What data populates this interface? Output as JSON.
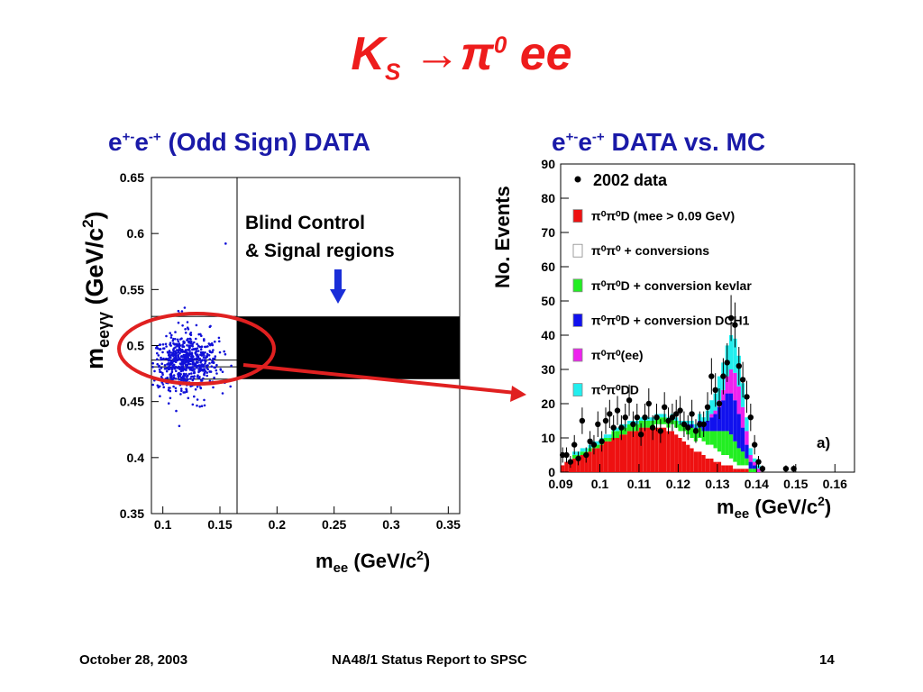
{
  "slide": {
    "title_main": "K",
    "title_sub": "S",
    "title_arrow": "→",
    "title_pi": "π",
    "title_pi_sup": "0",
    "title_ee": " ee",
    "left_title_a": "e",
    "left_title_a_sup": "+-",
    "left_title_b": "e",
    "left_title_b_sup": "-+",
    "left_title_c": " (Odd Sign) DATA",
    "right_title_a": "e",
    "right_title_a_sup": "+-",
    "right_title_b": "e",
    "right_title_b_sup": "-+",
    "right_title_c": " DATA vs. MC"
  },
  "footer": {
    "date": "October 28, 2003",
    "report": "NA48/1 Status Report to SPSC",
    "page": "14"
  },
  "colors": {
    "title": "#ee1c1c",
    "subtitle": "#1a1aa8",
    "points_left": "#1010d8",
    "highlight_ellipse": "#e02020",
    "mc_red": "#ee1111",
    "mc_white": "#ffffff",
    "mc_green": "#22ee22",
    "mc_blue": "#1111ee",
    "mc_magenta": "#ee22ee",
    "mc_cyan": "#22eeee"
  },
  "chart_data": [
    {
      "type": "scatter",
      "xlabel": "m",
      "xlabel_sub": "ee",
      "xlabel_unit": " (GeV/c",
      "xlabel_unit_sup": "2",
      "xlabel_close": ")",
      "ylabel": "m",
      "ylabel_sub": "eeγγ",
      "ylabel_unit": " (GeV/c",
      "ylabel_unit_sup": "2",
      "ylabel_close": ")",
      "xlim": [
        0.09,
        0.36
      ],
      "ylim": [
        0.35,
        0.65
      ],
      "x_ticks": [
        "0.1",
        "0.15",
        "0.2",
        "0.25",
        "0.3",
        "0.35"
      ],
      "x_tick_values": [
        0.1,
        0.15,
        0.2,
        0.25,
        0.3,
        0.35
      ],
      "y_ticks": [
        "0.35",
        "0.4",
        "0.45",
        "0.5",
        "0.55",
        "0.6",
        "0.65"
      ],
      "y_tick_values": [
        0.35,
        0.4,
        0.45,
        0.5,
        0.55,
        0.6,
        0.65
      ],
      "annotation_lines": [
        "Blind Control",
        "& Signal regions"
      ],
      "blind_region": {
        "x": [
          0.165,
          0.36
        ],
        "y": [
          0.47,
          0.526
        ]
      },
      "control_region": {
        "x": [
          0.09,
          0.165
        ],
        "y": [
          0.47,
          0.526
        ]
      },
      "inner_band": {
        "y": [
          0.481,
          0.487
        ]
      },
      "signal_cut_x": 0.165,
      "point_cluster": {
        "x_center": 0.12,
        "x_spread": 0.024,
        "y_center": 0.485,
        "y_spread": 0.012,
        "count": 650
      }
    },
    {
      "type": "histogram",
      "ylabel": "No. Events",
      "xlabel": "m",
      "xlabel_sub": "ee",
      "xlabel_unit": " (GeV/c",
      "xlabel_unit_sup": "2",
      "xlabel_close": ")",
      "xlim": [
        0.09,
        0.165
      ],
      "ylim": [
        0,
        90
      ],
      "x_ticks": [
        "0.09",
        "0.1",
        "0.11",
        "0.12",
        "0.13",
        "0.14",
        "0.15",
        "0.16"
      ],
      "x_tick_values": [
        0.09,
        0.1,
        0.11,
        0.12,
        0.13,
        0.14,
        0.15,
        0.16
      ],
      "y_ticks": [
        "0",
        "10",
        "20",
        "30",
        "40",
        "50",
        "60",
        "70",
        "80",
        "90"
      ],
      "y_tick_values": [
        0,
        10,
        20,
        30,
        40,
        50,
        60,
        70,
        80,
        90
      ],
      "panel_label": "a)",
      "legend": [
        {
          "marker": "dot",
          "text": "2002 data",
          "color": "#000000"
        },
        {
          "marker": "box",
          "text": "π⁰π⁰D (mee > 0.09 GeV)",
          "color": "#ee1111"
        },
        {
          "marker": "box",
          "text": "π⁰π⁰ + conversions",
          "color": "#ffffff"
        },
        {
          "marker": "box",
          "text": "π⁰π⁰D + conversion kevlar",
          "color": "#22ee22"
        },
        {
          "marker": "box",
          "text": "π⁰π⁰D + conversion DCH1",
          "color": "#1111ee"
        },
        {
          "marker": "box",
          "text": "π⁰π⁰(ee)",
          "color": "#ee22ee"
        },
        {
          "marker": "box",
          "text": "π⁰π⁰DD",
          "color": "#22eeee"
        }
      ],
      "bins": [
        0.0905,
        0.0915,
        0.0925,
        0.0935,
        0.0945,
        0.0955,
        0.0965,
        0.0975,
        0.0985,
        0.0995,
        0.1005,
        0.1015,
        0.1025,
        0.1035,
        0.1045,
        0.1055,
        0.1065,
        0.1075,
        0.1085,
        0.1095,
        0.1105,
        0.1115,
        0.1125,
        0.1135,
        0.1145,
        0.1155,
        0.1165,
        0.1175,
        0.1185,
        0.1195,
        0.1205,
        0.1215,
        0.1225,
        0.1235,
        0.1245,
        0.1255,
        0.1265,
        0.1275,
        0.1285,
        0.1295,
        0.1305,
        0.1315,
        0.1325,
        0.1335,
        0.1345,
        0.1355,
        0.1365,
        0.1375,
        0.1385,
        0.1395,
        0.1405,
        0.1415,
        0.1425,
        0.1435,
        0.1445
      ],
      "series": [
        {
          "name": "π⁰π⁰D (mee > 0.09 GeV)",
          "color": "#ee1111",
          "values": [
            2,
            3,
            3,
            4,
            4,
            5,
            5,
            6,
            7,
            7,
            8,
            9,
            9,
            10,
            10,
            11,
            11,
            12,
            12,
            12,
            13,
            13,
            13,
            13,
            13,
            13,
            13,
            12,
            12,
            11,
            10,
            9,
            8,
            7,
            6,
            6,
            5,
            4,
            4,
            3,
            3,
            2,
            2,
            2,
            1,
            1,
            1,
            1,
            0,
            0,
            0,
            0,
            0,
            0,
            0
          ]
        },
        {
          "name": "π⁰π⁰ + conversions",
          "color": "#ffffff",
          "values": [
            0,
            0,
            0,
            0,
            0,
            0,
            0,
            0,
            0,
            0,
            0,
            0,
            0,
            0,
            0,
            0,
            0,
            0,
            0,
            0,
            0,
            0,
            0,
            0,
            1,
            1,
            1,
            1,
            2,
            2,
            2,
            3,
            3,
            3,
            3,
            4,
            4,
            4,
            4,
            4,
            3,
            3,
            3,
            2,
            2,
            1,
            1,
            1,
            0,
            0,
            0,
            0,
            0,
            0,
            0
          ]
        },
        {
          "name": "π⁰π⁰D + conversion kevlar",
          "color": "#22ee22",
          "values": [
            0,
            0,
            0,
            1,
            1,
            1,
            1,
            1,
            1,
            1,
            1,
            1,
            1,
            2,
            2,
            2,
            2,
            2,
            2,
            2,
            2,
            2,
            2,
            2,
            2,
            2,
            2,
            2,
            2,
            2,
            2,
            2,
            2,
            3,
            3,
            3,
            3,
            4,
            4,
            5,
            6,
            7,
            7,
            7,
            6,
            5,
            4,
            2,
            1,
            1,
            0,
            0,
            0,
            0,
            0
          ]
        },
        {
          "name": "π⁰π⁰D + conversion DCH1",
          "color": "#1111ee",
          "values": [
            0,
            0,
            0,
            0,
            0,
            0,
            0,
            0,
            0,
            0,
            0,
            0,
            0,
            0,
            0,
            0,
            0,
            0,
            0,
            0,
            0,
            0,
            0,
            0,
            0,
            0,
            0,
            0,
            0,
            0,
            0,
            0,
            1,
            1,
            1,
            2,
            2,
            3,
            4,
            5,
            7,
            9,
            11,
            12,
            12,
            10,
            7,
            4,
            2,
            1,
            0,
            0,
            0,
            0,
            0
          ]
        },
        {
          "name": "π⁰π⁰(ee)",
          "color": "#ee22ee",
          "values": [
            0,
            0,
            0,
            0,
            0,
            0,
            0,
            0,
            0,
            0,
            0,
            0,
            0,
            0,
            0,
            0,
            0,
            0,
            0,
            0,
            0,
            0,
            0,
            0,
            0,
            0,
            0,
            0,
            0,
            0,
            0,
            0,
            0,
            0,
            0,
            0,
            0,
            0,
            1,
            1,
            2,
            3,
            5,
            7,
            8,
            8,
            6,
            4,
            2,
            1,
            1,
            0,
            0,
            0,
            0
          ]
        },
        {
          "name": "π⁰π⁰DD",
          "color": "#22eeee",
          "values": [
            0,
            0,
            0,
            1,
            1,
            1,
            1,
            1,
            1,
            1,
            1,
            1,
            1,
            1,
            1,
            1,
            1,
            1,
            1,
            1,
            1,
            1,
            1,
            1,
            1,
            1,
            1,
            1,
            1,
            1,
            1,
            1,
            1,
            1,
            1,
            2,
            2,
            3,
            4,
            5,
            7,
            8,
            9,
            10,
            10,
            9,
            7,
            4,
            2,
            1,
            1,
            0,
            0,
            0,
            0
          ]
        }
      ],
      "data_points": [
        {
          "x": 0.0905,
          "y": 5
        },
        {
          "x": 0.0915,
          "y": 5
        },
        {
          "x": 0.0925,
          "y": 3
        },
        {
          "x": 0.0935,
          "y": 8
        },
        {
          "x": 0.0945,
          "y": 4
        },
        {
          "x": 0.0955,
          "y": 15
        },
        {
          "x": 0.0965,
          "y": 5
        },
        {
          "x": 0.0975,
          "y": 9
        },
        {
          "x": 0.0985,
          "y": 8
        },
        {
          "x": 0.0995,
          "y": 14
        },
        {
          "x": 0.1005,
          "y": 9
        },
        {
          "x": 0.1015,
          "y": 15
        },
        {
          "x": 0.1025,
          "y": 17
        },
        {
          "x": 0.1035,
          "y": 13
        },
        {
          "x": 0.1045,
          "y": 18
        },
        {
          "x": 0.1055,
          "y": 13
        },
        {
          "x": 0.1065,
          "y": 16
        },
        {
          "x": 0.1075,
          "y": 21
        },
        {
          "x": 0.1085,
          "y": 14
        },
        {
          "x": 0.1095,
          "y": 16
        },
        {
          "x": 0.1105,
          "y": 11
        },
        {
          "x": 0.1115,
          "y": 16
        },
        {
          "x": 0.1125,
          "y": 20
        },
        {
          "x": 0.1135,
          "y": 13
        },
        {
          "x": 0.1145,
          "y": 16
        },
        {
          "x": 0.1155,
          "y": 12
        },
        {
          "x": 0.1165,
          "y": 19
        },
        {
          "x": 0.1175,
          "y": 15
        },
        {
          "x": 0.1185,
          "y": 16
        },
        {
          "x": 0.1195,
          "y": 17
        },
        {
          "x": 0.1205,
          "y": 18
        },
        {
          "x": 0.1215,
          "y": 14
        },
        {
          "x": 0.1225,
          "y": 13
        },
        {
          "x": 0.1235,
          "y": 17
        },
        {
          "x": 0.1245,
          "y": 12
        },
        {
          "x": 0.1255,
          "y": 14
        },
        {
          "x": 0.1265,
          "y": 14
        },
        {
          "x": 0.1275,
          "y": 19
        },
        {
          "x": 0.1285,
          "y": 28
        },
        {
          "x": 0.1295,
          "y": 24
        },
        {
          "x": 0.1305,
          "y": 20
        },
        {
          "x": 0.1315,
          "y": 28
        },
        {
          "x": 0.1325,
          "y": 32
        },
        {
          "x": 0.1335,
          "y": 45
        },
        {
          "x": 0.1345,
          "y": 43
        },
        {
          "x": 0.1355,
          "y": 31
        },
        {
          "x": 0.1365,
          "y": 27
        },
        {
          "x": 0.1375,
          "y": 22
        },
        {
          "x": 0.1385,
          "y": 16
        },
        {
          "x": 0.1395,
          "y": 8
        },
        {
          "x": 0.1405,
          "y": 3
        },
        {
          "x": 0.1415,
          "y": 1
        },
        {
          "x": 0.1475,
          "y": 1
        },
        {
          "x": 0.1495,
          "y": 1
        }
      ]
    }
  ]
}
